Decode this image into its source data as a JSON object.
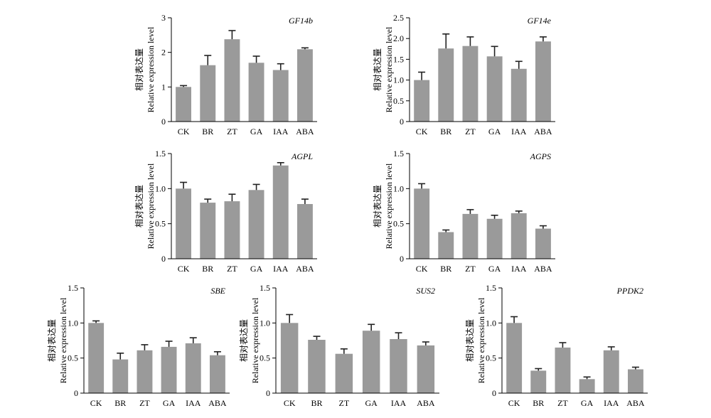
{
  "colors": {
    "bar": "#9a9a9a",
    "axis": "#000000",
    "error": "#222222"
  },
  "chart_data": [
    {
      "type": "bar",
      "title": "GF14b",
      "ylabel_cn": "相对表达量",
      "ylabel_en": "Relative expression level",
      "categories": [
        "CK",
        "BR",
        "ZT",
        "GA",
        "IAA",
        "ABA"
      ],
      "values": [
        1.0,
        1.63,
        2.38,
        1.7,
        1.49,
        2.09
      ],
      "errors": [
        0.04,
        0.28,
        0.25,
        0.19,
        0.18,
        0.04
      ],
      "ylim": [
        0,
        3
      ],
      "yticks": [
        0,
        1,
        2,
        3
      ],
      "ytick_labels": [
        "0",
        "1",
        "2",
        "3"
      ]
    },
    {
      "type": "bar",
      "title": "GF14e",
      "ylabel_cn": "相对表达量",
      "ylabel_en": "Relative expression level",
      "categories": [
        "CK",
        "BR",
        "ZT",
        "GA",
        "IAA",
        "ABA"
      ],
      "values": [
        1.0,
        1.76,
        1.82,
        1.57,
        1.27,
        1.93
      ],
      "errors": [
        0.19,
        0.35,
        0.22,
        0.24,
        0.18,
        0.11
      ],
      "ylim": [
        0,
        2.5
      ],
      "yticks": [
        0,
        0.5,
        1.0,
        1.5,
        2.0,
        2.5
      ],
      "ytick_labels": [
        "0",
        "0.5",
        "1.0",
        "1.5",
        "2.0",
        "2.5"
      ]
    },
    {
      "type": "bar",
      "title": "AGPL",
      "ylabel_cn": "相对表达量",
      "ylabel_en": "Relative expression level",
      "categories": [
        "CK",
        "BR",
        "ZT",
        "GA",
        "IAA",
        "ABA"
      ],
      "values": [
        1.0,
        0.8,
        0.82,
        0.98,
        1.33,
        0.78
      ],
      "errors": [
        0.09,
        0.05,
        0.1,
        0.08,
        0.04,
        0.07
      ],
      "ylim": [
        0,
        1.5
      ],
      "yticks": [
        0,
        0.5,
        1.0,
        1.5
      ],
      "ytick_labels": [
        "0",
        "0.5",
        "1.0",
        "1.5"
      ]
    },
    {
      "type": "bar",
      "title": "AGPS",
      "ylabel_cn": "相对表达量",
      "ylabel_en": "Relative expression level",
      "categories": [
        "CK",
        "BR",
        "ZT",
        "GA",
        "IAA",
        "ABA"
      ],
      "values": [
        1.0,
        0.38,
        0.64,
        0.57,
        0.65,
        0.43
      ],
      "errors": [
        0.07,
        0.03,
        0.06,
        0.05,
        0.03,
        0.04
      ],
      "ylim": [
        0,
        1.5
      ],
      "yticks": [
        0,
        0.5,
        1.0,
        1.5
      ],
      "ytick_labels": [
        "0",
        "0.5",
        "1.0",
        "1.5"
      ]
    },
    {
      "type": "bar",
      "title": "SBE",
      "ylabel_cn": "相对表达量",
      "ylabel_en": "Relative expression level",
      "categories": [
        "CK",
        "BR",
        "ZT",
        "GA",
        "IAA",
        "ABA"
      ],
      "values": [
        1.0,
        0.48,
        0.61,
        0.66,
        0.71,
        0.54
      ],
      "errors": [
        0.03,
        0.09,
        0.08,
        0.08,
        0.08,
        0.05
      ],
      "ylim": [
        0,
        1.5
      ],
      "yticks": [
        0,
        0.5,
        1.0,
        1.5
      ],
      "ytick_labels": [
        "0",
        "0.5",
        "1.0",
        "1.5"
      ]
    },
    {
      "type": "bar",
      "title": "SUS2",
      "ylabel_cn": "相对表达量",
      "ylabel_en": "Relative expression level",
      "categories": [
        "CK",
        "BR",
        "ZT",
        "GA",
        "IAA",
        "ABA"
      ],
      "values": [
        1.0,
        0.76,
        0.56,
        0.89,
        0.77,
        0.68
      ],
      "errors": [
        0.12,
        0.05,
        0.07,
        0.09,
        0.09,
        0.05
      ],
      "ylim": [
        0,
        1.5
      ],
      "yticks": [
        0,
        0.5,
        1.0,
        1.5
      ],
      "ytick_labels": [
        "0",
        "0.5",
        "1.0",
        "1.5"
      ]
    },
    {
      "type": "bar",
      "title": "PPDK2",
      "ylabel_cn": "相对表达量",
      "ylabel_en": "Relative expression level",
      "categories": [
        "CK",
        "BR",
        "ZT",
        "GA",
        "IAA",
        "ABA"
      ],
      "values": [
        1.0,
        0.32,
        0.65,
        0.2,
        0.61,
        0.34
      ],
      "errors": [
        0.09,
        0.03,
        0.07,
        0.03,
        0.05,
        0.03
      ],
      "ylim": [
        0,
        1.5
      ],
      "yticks": [
        0,
        0.5,
        1.0,
        1.5
      ],
      "ytick_labels": [
        "0",
        "0.5",
        "1.0",
        "1.5"
      ]
    }
  ]
}
